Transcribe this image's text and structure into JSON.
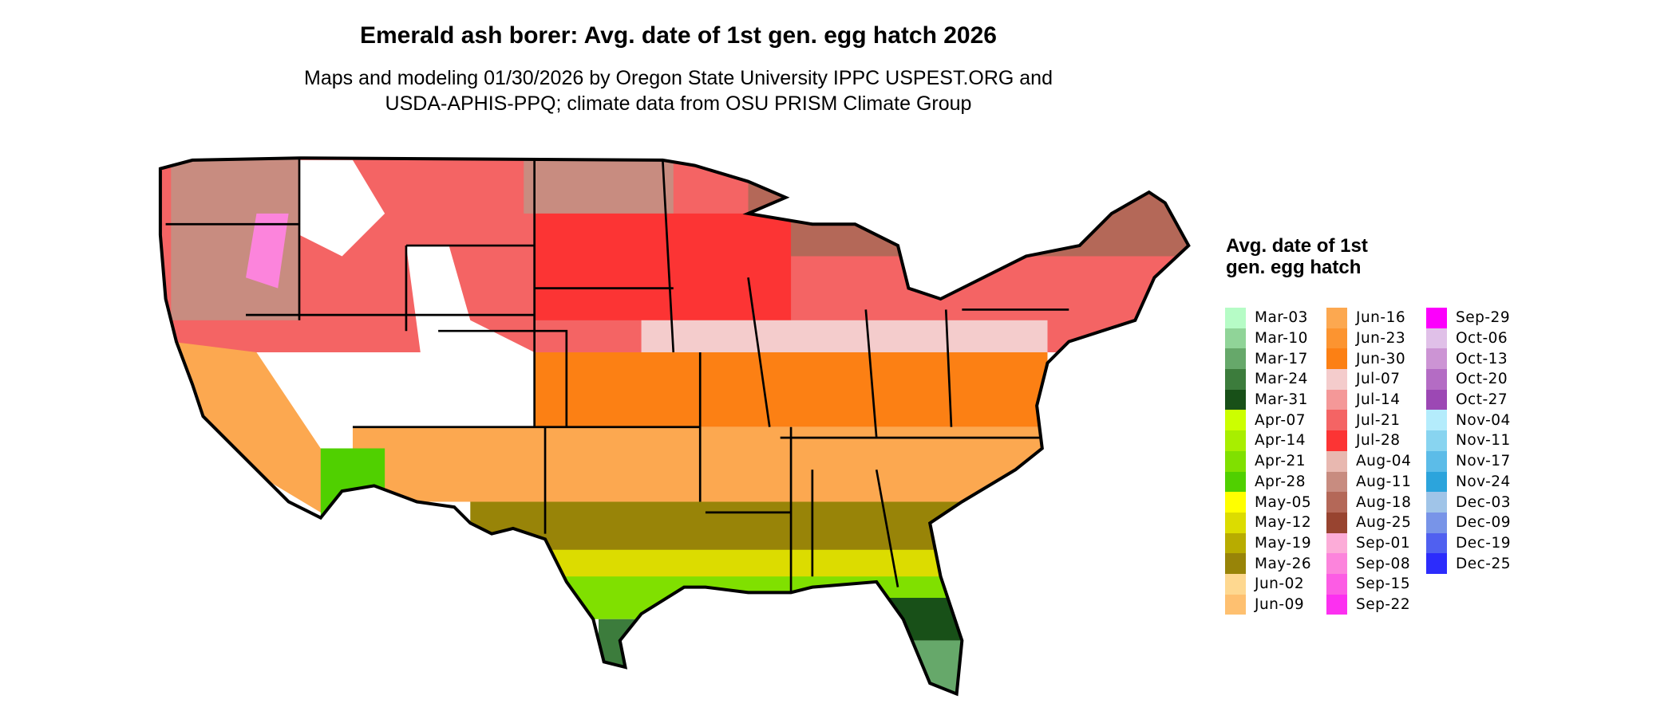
{
  "title": "Emerald ash borer: Avg. date of 1st gen. egg hatch 2026",
  "subtitle_line1": "Maps and modeling 01/30/2026 by Oregon State University IPPC USPEST.ORG and",
  "subtitle_line2": "USDA-APHIS-PPQ; climate data from OSU PRISM Climate Group",
  "legend": {
    "title": "Avg. date of 1st gen. egg hatch",
    "items": [
      {
        "label": "Mar-03",
        "color": "#b6fcc6"
      },
      {
        "label": "Mar-10",
        "color": "#90d498"
      },
      {
        "label": "Mar-17",
        "color": "#66a86a"
      },
      {
        "label": "Mar-24",
        "color": "#3c7c3c"
      },
      {
        "label": "Mar-31",
        "color": "#185018"
      },
      {
        "label": "Apr-07",
        "color": "#ccff00"
      },
      {
        "label": "Apr-14",
        "color": "#a8ee00"
      },
      {
        "label": "Apr-21",
        "color": "#80e000"
      },
      {
        "label": "Apr-28",
        "color": "#50d000"
      },
      {
        "label": "May-05",
        "color": "#ffff00"
      },
      {
        "label": "May-12",
        "color": "#dcdc00"
      },
      {
        "label": "May-19",
        "color": "#b8ac00"
      },
      {
        "label": "May-26",
        "color": "#988408"
      },
      {
        "label": "Jun-02",
        "color": "#fed890"
      },
      {
        "label": "Jun-09",
        "color": "#fec070"
      },
      {
        "label": "Jun-16",
        "color": "#fca850"
      },
      {
        "label": "Jun-23",
        "color": "#fc9430"
      },
      {
        "label": "Jun-30",
        "color": "#fc8014"
      },
      {
        "label": "Jul-07",
        "color": "#f4cccc"
      },
      {
        "label": "Jul-14",
        "color": "#f49898"
      },
      {
        "label": "Jul-21",
        "color": "#f46464"
      },
      {
        "label": "Jul-28",
        "color": "#fc3434"
      },
      {
        "label": "Aug-04",
        "color": "#e8b8b0"
      },
      {
        "label": "Aug-11",
        "color": "#c88c80"
      },
      {
        "label": "Aug-18",
        "color": "#b46858"
      },
      {
        "label": "Aug-25",
        "color": "#984430"
      },
      {
        "label": "Sep-01",
        "color": "#fcacd8"
      },
      {
        "label": "Sep-08",
        "color": "#fc84dc"
      },
      {
        "label": "Sep-15",
        "color": "#fc5ce4"
      },
      {
        "label": "Sep-22",
        "color": "#fc30f0"
      },
      {
        "label": "Sep-29",
        "color": "#fc00fc"
      },
      {
        "label": "Oct-06",
        "color": "#e0c0e8"
      },
      {
        "label": "Oct-13",
        "color": "#cc94d4"
      },
      {
        "label": "Oct-20",
        "color": "#b46cc4"
      },
      {
        "label": "Oct-27",
        "color": "#9c48b4"
      },
      {
        "label": "Nov-04",
        "color": "#b4ecfc"
      },
      {
        "label": "Nov-11",
        "color": "#88d4f0"
      },
      {
        "label": "Nov-17",
        "color": "#5cbce8"
      },
      {
        "label": "Nov-24",
        "color": "#2ca4dc"
      },
      {
        "label": "Dec-03",
        "color": "#a0c4e8"
      },
      {
        "label": "Dec-09",
        "color": "#7894e8"
      },
      {
        "label": "Dec-19",
        "color": "#5060f0"
      },
      {
        "label": "Dec-25",
        "color": "#2c2cfc"
      }
    ]
  }
}
